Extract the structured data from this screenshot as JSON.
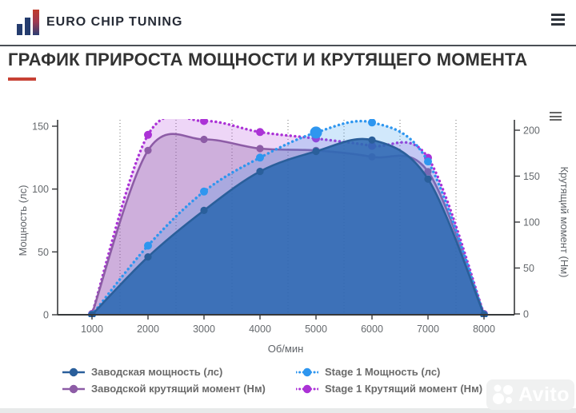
{
  "header": {
    "brand": "EURO CHIP TUNING"
  },
  "page": {
    "title": "ГРАФИК ПРИРОСТА МОЩНОСТИ И КРУТЯЩЕГО МОМЕНТА",
    "accent_color": "#c74134"
  },
  "watermark": {
    "text": "Avito"
  },
  "chart_data": {
    "type": "area",
    "x": [
      1000,
      2000,
      3000,
      4000,
      5000,
      6000,
      7000,
      8000
    ],
    "x_minor_gridlines": [
      1500,
      2500,
      3500,
      4500,
      5500,
      6500,
      7500
    ],
    "xlabel": "Об/мин",
    "ylabel_left": "Мощность (лс)",
    "ylabel_right": "Крутящий момент (Нм)",
    "yleft_ticks": [
      0,
      50,
      100,
      150
    ],
    "yright_ticks": [
      0,
      50,
      100,
      150,
      200
    ],
    "yleft_range": [
      0,
      155
    ],
    "yright_range": [
      0,
      212
    ],
    "grid": "vertical-dotted-minor",
    "legend_position": "bottom-two-columns",
    "series": [
      {
        "id": "stage1_torque",
        "name": "Stage 1 Крутящий момент (Нм)",
        "axis": "right",
        "style": "dotted",
        "color": "#ab32d6",
        "fill": "rgba(171,50,214,0.20)",
        "values": [
          0,
          195,
          210,
          198,
          191,
          183,
          170,
          0
        ]
      },
      {
        "id": "stock_torque",
        "name": "Заводской крутящий момент (Нм)",
        "axis": "right",
        "style": "solid",
        "color": "#8d5ca6",
        "fill": "rgba(141,92,166,0.32)",
        "values": [
          0,
          178,
          190,
          180,
          178,
          171,
          155,
          0
        ]
      },
      {
        "id": "stage1_power",
        "name": "Stage 1 Мощность (лс)",
        "axis": "left",
        "style": "dotted",
        "color": "#2e96ef",
        "fill": "rgba(46,150,239,0.22)",
        "highlight_x": 5000,
        "values": [
          0,
          55,
          98,
          125,
          145,
          153,
          122,
          0
        ]
      },
      {
        "id": "stock_power",
        "name": "Заводская мощность (лс)",
        "axis": "left",
        "style": "solid",
        "color": "#2a5f9b",
        "fill": "rgba(45,105,179,0.88)",
        "values": [
          0,
          46,
          83,
          114,
          130,
          139,
          108,
          0
        ]
      }
    ],
    "legend_order": [
      "stock_power",
      "stage1_power",
      "stock_torque",
      "stage1_torque"
    ]
  }
}
